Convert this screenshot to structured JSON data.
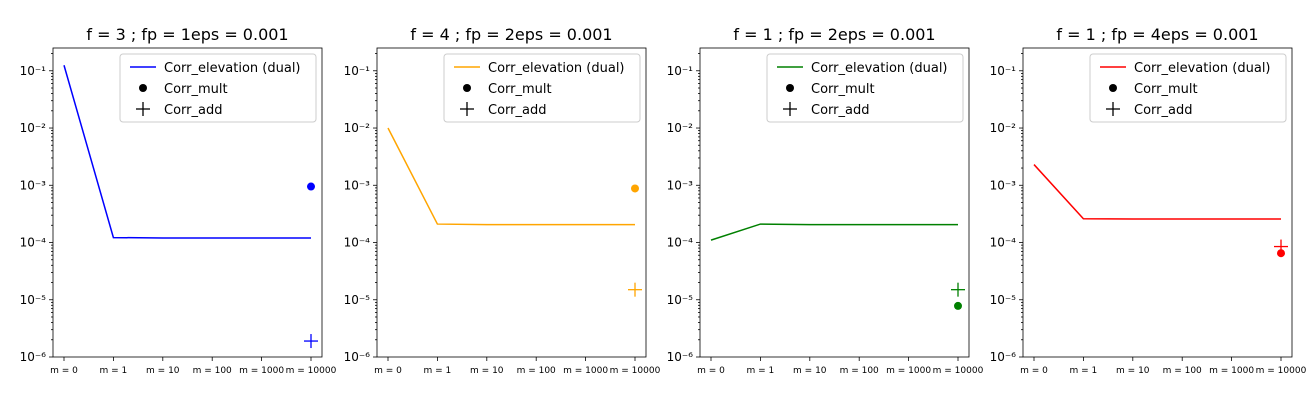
{
  "chart_data": [
    {
      "type": "line",
      "title": "f = 3 ; fp = 1eps = 0.001",
      "categories": [
        "m = 0",
        "m = 1",
        "m = 10",
        "m = 100",
        "m = 1000",
        "m = 10000"
      ],
      "y_scale": "log",
      "ylim": [
        1e-06,
        0.25
      ],
      "y_ticks": [
        1e-06,
        1e-05,
        0.0001,
        0.001,
        0.01,
        0.1
      ],
      "y_tick_labels": [
        "10⁻⁶",
        "10⁻⁵",
        "10⁻⁴",
        "10⁻³",
        "10⁻²",
        "10⁻¹"
      ],
      "color": "#0000ff",
      "legend_position": "top-right",
      "series": [
        {
          "name": "Corr_elevation (dual)",
          "kind": "line",
          "values": [
            0.125,
            0.000122,
            0.00012,
            0.00012,
            0.00012,
            0.00012
          ]
        },
        {
          "name": "Corr_mult",
          "kind": "dot",
          "x": "m = 10000",
          "value": 0.00095
        },
        {
          "name": "Corr_add",
          "kind": "plus",
          "x": "m = 10000",
          "value": 1.9e-06
        }
      ]
    },
    {
      "type": "line",
      "title": "f = 4 ; fp = 2eps = 0.001",
      "categories": [
        "m = 0",
        "m = 1",
        "m = 10",
        "m = 100",
        "m = 1000",
        "m = 10000"
      ],
      "y_scale": "log",
      "ylim": [
        1e-06,
        0.25
      ],
      "y_ticks": [
        1e-06,
        1e-05,
        0.0001,
        0.001,
        0.01,
        0.1
      ],
      "y_tick_labels": [
        "10⁻⁶",
        "10⁻⁵",
        "10⁻⁴",
        "10⁻³",
        "10⁻²",
        "10⁻¹"
      ],
      "color": "#ffa500",
      "legend_position": "top-right",
      "series": [
        {
          "name": "Corr_elevation (dual)",
          "kind": "line",
          "values": [
            0.01,
            0.00021,
            0.000205,
            0.000205,
            0.000205,
            0.000205
          ]
        },
        {
          "name": "Corr_mult",
          "kind": "dot",
          "x": "m = 10000",
          "value": 0.00088
        },
        {
          "name": "Corr_add",
          "kind": "plus",
          "x": "m = 10000",
          "value": 1.5e-05
        }
      ]
    },
    {
      "type": "line",
      "title": "f = 1 ; fp = 2eps = 0.001",
      "categories": [
        "m = 0",
        "m = 1",
        "m = 10",
        "m = 100",
        "m = 1000",
        "m = 10000"
      ],
      "y_scale": "log",
      "ylim": [
        1e-06,
        0.25
      ],
      "y_ticks": [
        1e-06,
        1e-05,
        0.0001,
        0.001,
        0.01,
        0.1
      ],
      "y_tick_labels": [
        "10⁻⁶",
        "10⁻⁵",
        "10⁻⁴",
        "10⁻³",
        "10⁻²",
        "10⁻¹"
      ],
      "color": "#008000",
      "legend_position": "top-right",
      "series": [
        {
          "name": "Corr_elevation (dual)",
          "kind": "line",
          "values": [
            0.00011,
            0.00021,
            0.000205,
            0.000205,
            0.000205,
            0.000205
          ]
        },
        {
          "name": "Corr_mult",
          "kind": "dot",
          "x": "m = 10000",
          "value": 7.8e-06
        },
        {
          "name": "Corr_add",
          "kind": "plus",
          "x": "m = 10000",
          "value": 1.5e-05
        }
      ]
    },
    {
      "type": "line",
      "title": "f = 1 ; fp = 4eps = 0.001",
      "categories": [
        "m = 0",
        "m = 1",
        "m = 10",
        "m = 100",
        "m = 1000",
        "m = 10000"
      ],
      "y_scale": "log",
      "ylim": [
        1e-06,
        0.25
      ],
      "y_ticks": [
        1e-06,
        1e-05,
        0.0001,
        0.001,
        0.01,
        0.1
      ],
      "y_tick_labels": [
        "10⁻⁶",
        "10⁻⁵",
        "10⁻⁴",
        "10⁻³",
        "10⁻²",
        "10⁻¹"
      ],
      "color": "#ff0000",
      "legend_position": "top-right",
      "series": [
        {
          "name": "Corr_elevation (dual)",
          "kind": "line",
          "values": [
            0.0023,
            0.00026,
            0.000258,
            0.000258,
            0.000258,
            0.000258
          ]
        },
        {
          "name": "Corr_mult",
          "kind": "dot",
          "x": "m = 10000",
          "value": 6.5e-05
        },
        {
          "name": "Corr_add",
          "kind": "plus",
          "x": "m = 10000",
          "value": 8.5e-05
        }
      ]
    }
  ]
}
